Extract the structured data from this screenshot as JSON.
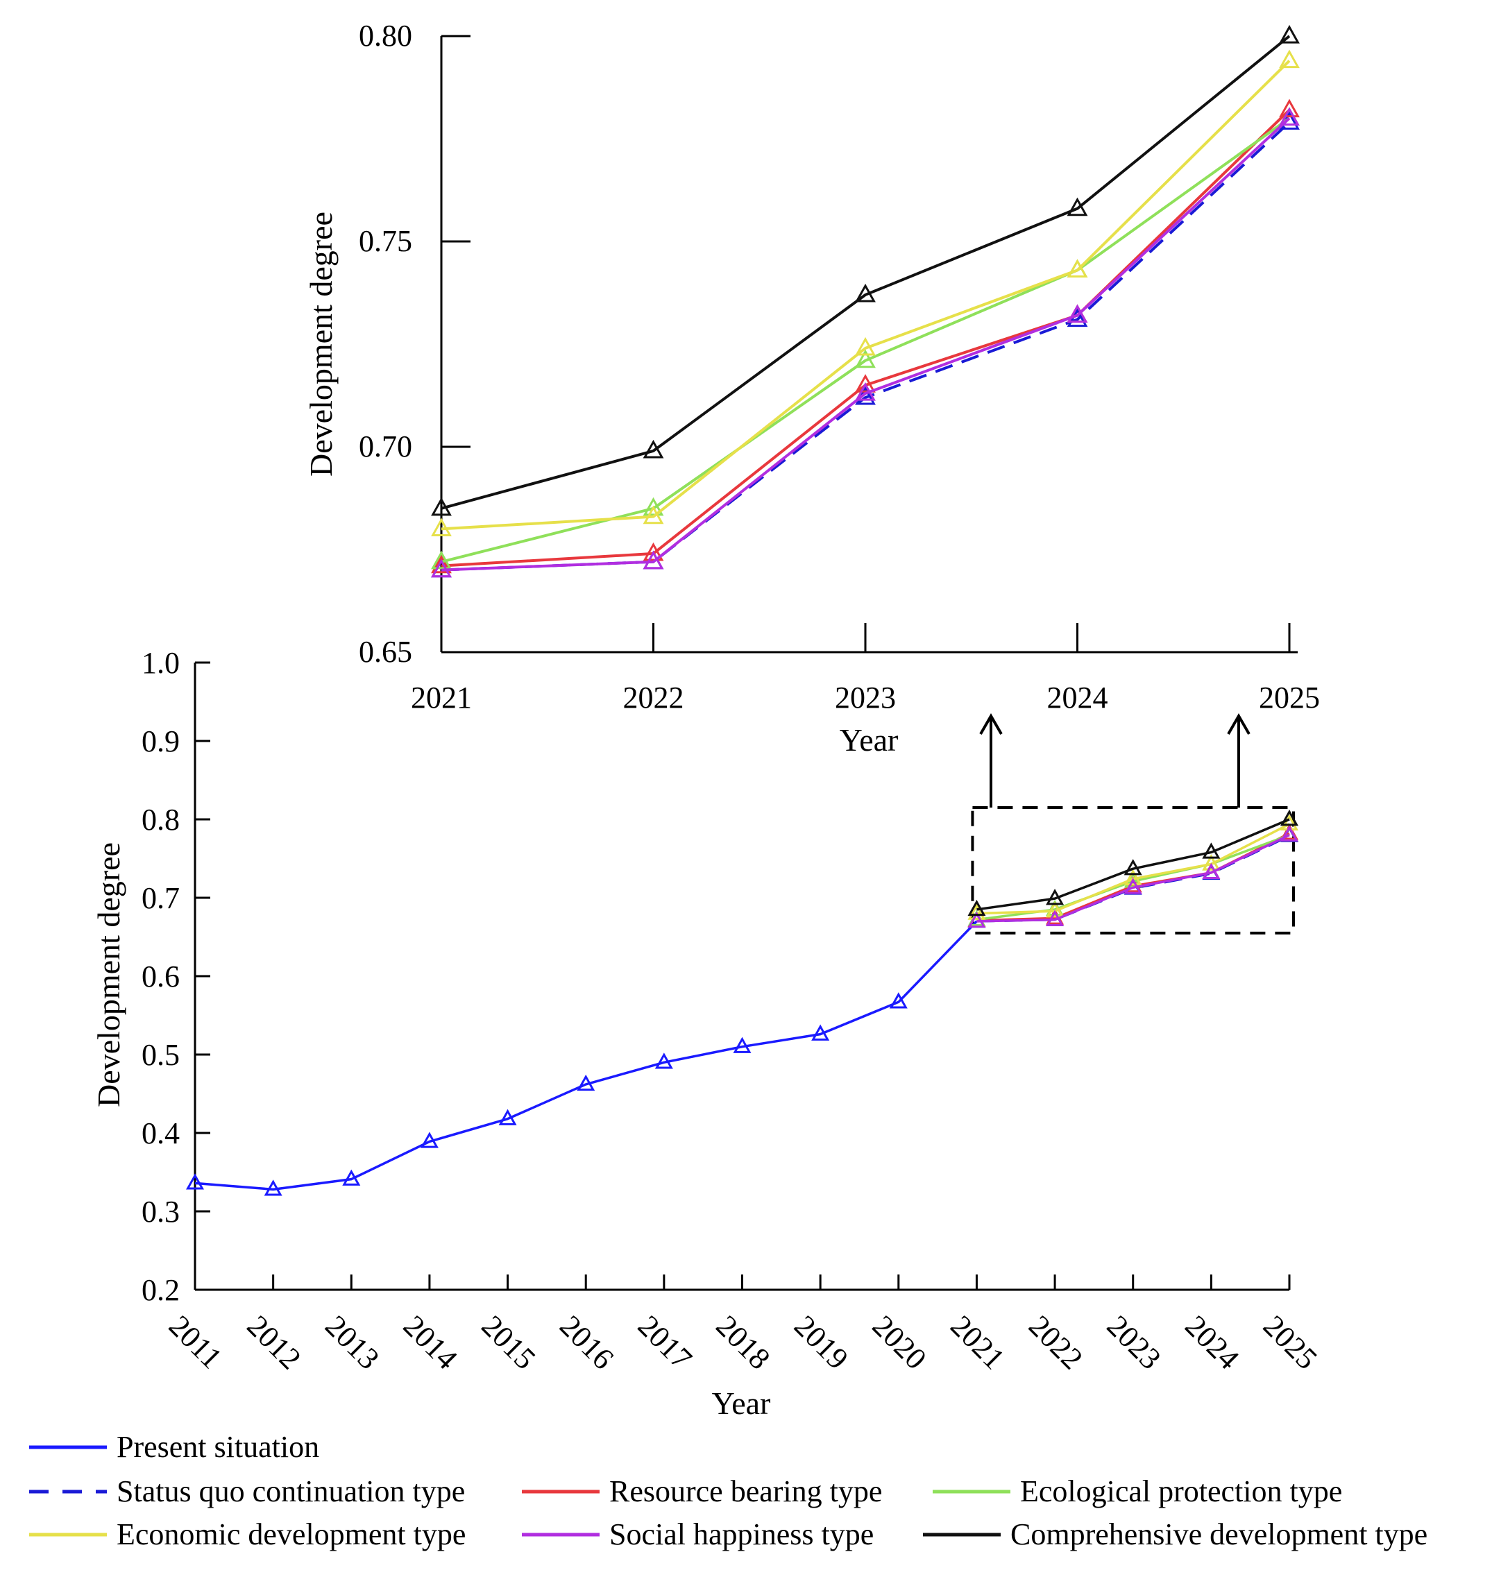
{
  "chart_data": [
    {
      "id": "inset",
      "type": "line",
      "xlabel": "Year",
      "ylabel": "Development degree",
      "xlim": [
        2021,
        2025
      ],
      "ylim": [
        0.65,
        0.8
      ],
      "x": [
        2021,
        2022,
        2023,
        2024,
        2025
      ],
      "yticks": [
        "0.65",
        "0.70",
        "0.75",
        "0.80"
      ],
      "ytick_values": [
        0.65,
        0.7,
        0.75,
        0.8
      ],
      "series": [
        {
          "key": "status_quo",
          "values": [
            0.67,
            0.672,
            0.712,
            0.731,
            0.779
          ]
        },
        {
          "key": "resource_bearing",
          "values": [
            0.671,
            0.674,
            0.715,
            0.732,
            0.782
          ]
        },
        {
          "key": "ecological_protection",
          "values": [
            0.672,
            0.685,
            0.721,
            0.743,
            0.78
          ]
        },
        {
          "key": "economic_development",
          "values": [
            0.68,
            0.683,
            0.724,
            0.743,
            0.794
          ]
        },
        {
          "key": "social_happiness",
          "values": [
            0.67,
            0.672,
            0.713,
            0.732,
            0.78
          ]
        },
        {
          "key": "comprehensive_development",
          "values": [
            0.685,
            0.699,
            0.737,
            0.758,
            0.8
          ]
        }
      ]
    },
    {
      "id": "main",
      "type": "line",
      "xlabel": "Year",
      "ylabel": "Development degree",
      "xlim": [
        2011,
        2025
      ],
      "ylim": [
        0.2,
        1.0
      ],
      "x": [
        2011,
        2012,
        2013,
        2014,
        2015,
        2016,
        2017,
        2018,
        2019,
        2020,
        2021,
        2022,
        2023,
        2024,
        2025
      ],
      "xticks": [
        "2011",
        "2012",
        "2013",
        "2014",
        "2015",
        "2016",
        "2017",
        "2018",
        "2019",
        "2020",
        "2021",
        "2022",
        "2023",
        "2024",
        "2025"
      ],
      "yticks": [
        "0.2",
        "0.3",
        "0.4",
        "0.5",
        "0.6",
        "0.7",
        "0.8",
        "0.9",
        "1.0"
      ],
      "ytick_values": [
        0.2,
        0.3,
        0.4,
        0.5,
        0.6,
        0.7,
        0.8,
        0.9,
        1.0
      ],
      "zoom_box": {
        "x": [
          2021,
          2025
        ],
        "y": [
          0.655,
          0.815
        ]
      },
      "series": [
        {
          "key": "present",
          "x": [
            2011,
            2012,
            2013,
            2014,
            2015,
            2016,
            2017,
            2018,
            2019,
            2020,
            2021
          ],
          "values": [
            0.336,
            0.328,
            0.341,
            0.389,
            0.418,
            0.462,
            0.49,
            0.51,
            0.526,
            0.567,
            0.67
          ]
        },
        {
          "key": "status_quo",
          "x": [
            2021,
            2022,
            2023,
            2024,
            2025
          ],
          "values": [
            0.67,
            0.672,
            0.712,
            0.731,
            0.779
          ]
        },
        {
          "key": "resource_bearing",
          "x": [
            2021,
            2022,
            2023,
            2024,
            2025
          ],
          "values": [
            0.671,
            0.674,
            0.715,
            0.732,
            0.782
          ]
        },
        {
          "key": "ecological_protection",
          "x": [
            2021,
            2022,
            2023,
            2024,
            2025
          ],
          "values": [
            0.672,
            0.685,
            0.721,
            0.743,
            0.78
          ]
        },
        {
          "key": "economic_development",
          "x": [
            2021,
            2022,
            2023,
            2024,
            2025
          ],
          "values": [
            0.68,
            0.683,
            0.724,
            0.743,
            0.794
          ]
        },
        {
          "key": "social_happiness",
          "x": [
            2021,
            2022,
            2023,
            2024,
            2025
          ],
          "values": [
            0.67,
            0.672,
            0.713,
            0.732,
            0.78
          ]
        },
        {
          "key": "comprehensive_development",
          "x": [
            2021,
            2022,
            2023,
            2024,
            2025
          ],
          "values": [
            0.685,
            0.699,
            0.737,
            0.758,
            0.8
          ]
        }
      ]
    }
  ],
  "legend": [
    {
      "key": "present",
      "label": "Present situation",
      "color": "#1a1aff",
      "dashed": false
    },
    {
      "key": "status_quo",
      "label": "Status quo continuation type",
      "color": "#1a1ad6",
      "dashed": true
    },
    {
      "key": "resource_bearing",
      "label": "Resource bearing type",
      "color": "#e8383d",
      "dashed": false
    },
    {
      "key": "ecological_protection",
      "label": "Ecological protection type",
      "color": "#8fe05a",
      "dashed": false
    },
    {
      "key": "economic_development",
      "label": "Economic development type",
      "color": "#e6e04a",
      "dashed": false
    },
    {
      "key": "social_happiness",
      "label": "Social happiness type",
      "color": "#b12ee0",
      "dashed": false
    },
    {
      "key": "comprehensive_development",
      "label": "Comprehensive development type",
      "color": "#111111",
      "dashed": false
    }
  ]
}
